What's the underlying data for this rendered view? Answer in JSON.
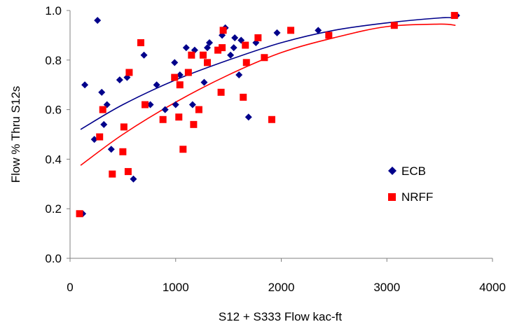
{
  "chart_data": {
    "type": "scatter",
    "title": "",
    "xlabel": "S12 + S333 Flow kac-ft",
    "ylabel": "Flow % Thru S12s",
    "xlim": [
      0,
      4000
    ],
    "ylim": [
      0.0,
      1.0
    ],
    "x_ticks": [
      0,
      1000,
      2000,
      3000,
      4000
    ],
    "y_ticks": [
      0.0,
      0.2,
      0.4,
      0.6,
      0.8,
      1.0
    ],
    "x_tick_labels": [
      "0",
      "1000",
      "2000",
      "3000",
      "4000"
    ],
    "y_tick_labels": [
      "0.0",
      "0.2",
      "0.4",
      "0.6",
      "0.8",
      "1.0"
    ],
    "grid": false,
    "legend_position": "right-middle",
    "series": [
      {
        "name": "ECB",
        "marker": "diamond",
        "color": "#00008B",
        "points": [
          [
            120,
            0.18
          ],
          [
            140,
            0.7
          ],
          [
            230,
            0.48
          ],
          [
            260,
            0.96
          ],
          [
            300,
            0.67
          ],
          [
            320,
            0.54
          ],
          [
            350,
            0.62
          ],
          [
            390,
            0.44
          ],
          [
            470,
            0.72
          ],
          [
            540,
            0.73
          ],
          [
            600,
            0.32
          ],
          [
            700,
            0.82
          ],
          [
            760,
            0.62
          ],
          [
            820,
            0.7
          ],
          [
            900,
            0.6
          ],
          [
            990,
            0.79
          ],
          [
            1000,
            0.62
          ],
          [
            1040,
            0.74
          ],
          [
            1100,
            0.85
          ],
          [
            1160,
            0.62
          ],
          [
            1180,
            0.84
          ],
          [
            1270,
            0.71
          ],
          [
            1300,
            0.85
          ],
          [
            1320,
            0.87
          ],
          [
            1440,
            0.9
          ],
          [
            1470,
            0.93
          ],
          [
            1520,
            0.82
          ],
          [
            1550,
            0.85
          ],
          [
            1560,
            0.89
          ],
          [
            1600,
            0.74
          ],
          [
            1620,
            0.88
          ],
          [
            1690,
            0.57
          ],
          [
            1760,
            0.87
          ],
          [
            1960,
            0.91
          ],
          [
            2350,
            0.92
          ],
          [
            3660,
            0.98
          ]
        ]
      },
      {
        "name": "NRFF",
        "marker": "square",
        "color": "#FF0000",
        "points": [
          [
            90,
            0.18
          ],
          [
            280,
            0.49
          ],
          [
            310,
            0.6
          ],
          [
            400,
            0.34
          ],
          [
            500,
            0.43
          ],
          [
            510,
            0.53
          ],
          [
            550,
            0.35
          ],
          [
            560,
            0.75
          ],
          [
            670,
            0.87
          ],
          [
            710,
            0.62
          ],
          [
            880,
            0.56
          ],
          [
            990,
            0.73
          ],
          [
            1030,
            0.57
          ],
          [
            1040,
            0.7
          ],
          [
            1070,
            0.44
          ],
          [
            1120,
            0.75
          ],
          [
            1150,
            0.82
          ],
          [
            1170,
            0.54
          ],
          [
            1220,
            0.6
          ],
          [
            1260,
            0.82
          ],
          [
            1300,
            0.79
          ],
          [
            1400,
            0.84
          ],
          [
            1430,
            0.67
          ],
          [
            1440,
            0.85
          ],
          [
            1450,
            0.92
          ],
          [
            1640,
            0.65
          ],
          [
            1660,
            0.86
          ],
          [
            1670,
            0.79
          ],
          [
            1780,
            0.89
          ],
          [
            1840,
            0.81
          ],
          [
            1910,
            0.56
          ],
          [
            2090,
            0.92
          ],
          [
            2450,
            0.9
          ],
          [
            3070,
            0.94
          ],
          [
            3640,
            0.98
          ]
        ]
      }
    ],
    "trendlines": [
      {
        "series": "ECB",
        "type": "polynomial-2",
        "color": "#00008B",
        "x": [
          100,
          500,
          1000,
          1500,
          2000,
          2500,
          3000,
          3500,
          3650
        ],
        "y": [
          0.52,
          0.62,
          0.72,
          0.8,
          0.87,
          0.92,
          0.95,
          0.97,
          0.97
        ]
      },
      {
        "series": "NRFF",
        "type": "polynomial-2",
        "color": "#FF0000",
        "x": [
          100,
          500,
          1000,
          1500,
          2000,
          2500,
          3000,
          3500,
          3650
        ],
        "y": [
          0.375,
          0.5,
          0.63,
          0.74,
          0.83,
          0.89,
          0.935,
          0.945,
          0.94
        ]
      }
    ]
  }
}
